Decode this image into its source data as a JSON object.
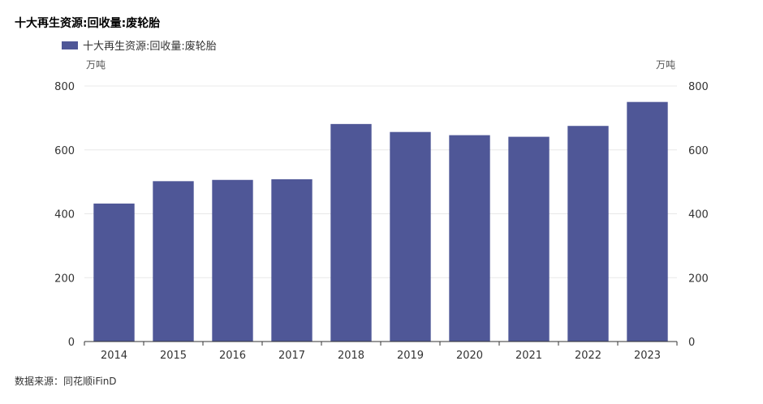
{
  "header": {
    "title": "十大再生资源:回收量:废轮胎"
  },
  "legend": {
    "label": "十大再生资源:回收量:废轮胎"
  },
  "units": {
    "left": "万吨",
    "right": "万吨"
  },
  "footer": {
    "source": "数据来源：同花顺iFinD"
  },
  "colors": {
    "bar": "#4f5797",
    "grid": "#e8e8e8",
    "axis": "#333333"
  },
  "chart_data": {
    "type": "bar",
    "title": "十大再生资源:回收量:废轮胎",
    "categories": [
      "2014",
      "2015",
      "2016",
      "2017",
      "2018",
      "2019",
      "2020",
      "2021",
      "2022",
      "2023"
    ],
    "series": [
      {
        "name": "十大再生资源:回收量:废轮胎",
        "values": [
          432,
          502,
          506,
          508,
          681,
          656,
          646,
          641,
          675,
          750
        ]
      }
    ],
    "ylabel_left": "万吨",
    "ylabel_right": "万吨",
    "ylim": [
      0,
      800
    ],
    "yticks": [
      0,
      200,
      400,
      600,
      800
    ],
    "grid": true,
    "legend_position": "top-left"
  }
}
